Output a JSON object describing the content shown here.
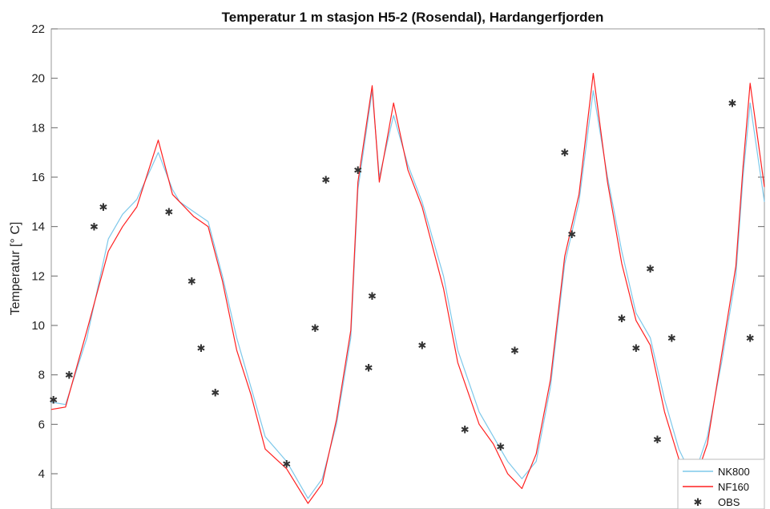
{
  "chart_data": {
    "type": "line",
    "title": "Temperatur 1 m stasjon H5-2 (Rosendal), Hardangerfjorden",
    "ylabel": "Temperatur [° C]",
    "xlabel": "",
    "xlim": [
      0,
      1
    ],
    "ylim": [
      2.4,
      22
    ],
    "y_ticks": [
      4,
      6,
      8,
      10,
      12,
      14,
      16,
      18,
      20,
      22
    ],
    "grid": false,
    "legend_position": "bottom-right",
    "colors": {
      "NK800": "#7ec8ea",
      "NF160": "#ff2020",
      "OBS": "#333333"
    },
    "series": [
      {
        "name": "NK800",
        "style": "line",
        "x": [
          0.0,
          0.02,
          0.05,
          0.08,
          0.1,
          0.12,
          0.15,
          0.17,
          0.18,
          0.2,
          0.22,
          0.24,
          0.26,
          0.28,
          0.3,
          0.33,
          0.36,
          0.38,
          0.4,
          0.42,
          0.43,
          0.45,
          0.46,
          0.48,
          0.5,
          0.52,
          0.55,
          0.57,
          0.6,
          0.62,
          0.64,
          0.66,
          0.68,
          0.7,
          0.72,
          0.74,
          0.76,
          0.78,
          0.8,
          0.82,
          0.84,
          0.86,
          0.88,
          0.9,
          0.92,
          0.94,
          0.96,
          0.97,
          0.98,
          1.0
        ],
        "y": [
          6.9,
          6.8,
          9.5,
          13.5,
          14.5,
          15.1,
          17.0,
          15.5,
          15.0,
          14.6,
          14.2,
          12.0,
          9.5,
          7.5,
          5.5,
          4.5,
          3.0,
          3.8,
          6.0,
          9.5,
          15.5,
          19.5,
          16.0,
          18.5,
          16.5,
          15.0,
          12.0,
          9.0,
          6.5,
          5.5,
          4.5,
          3.8,
          4.5,
          7.5,
          12.5,
          15.0,
          19.5,
          16.0,
          13.0,
          10.5,
          9.5,
          7.0,
          5.0,
          3.8,
          5.5,
          8.5,
          12.0,
          16.0,
          19.0,
          15.0
        ]
      },
      {
        "name": "NF160",
        "style": "line",
        "x": [
          0.0,
          0.02,
          0.05,
          0.08,
          0.1,
          0.12,
          0.15,
          0.17,
          0.18,
          0.2,
          0.22,
          0.24,
          0.26,
          0.28,
          0.3,
          0.33,
          0.36,
          0.38,
          0.4,
          0.42,
          0.43,
          0.45,
          0.46,
          0.48,
          0.5,
          0.52,
          0.55,
          0.57,
          0.6,
          0.62,
          0.64,
          0.66,
          0.68,
          0.7,
          0.72,
          0.74,
          0.76,
          0.78,
          0.8,
          0.82,
          0.84,
          0.86,
          0.88,
          0.9,
          0.92,
          0.94,
          0.96,
          0.97,
          0.98,
          1.0
        ],
        "y": [
          6.6,
          6.7,
          9.8,
          13.0,
          14.0,
          14.8,
          17.5,
          15.3,
          15.0,
          14.4,
          14.0,
          11.8,
          9.0,
          7.2,
          5.0,
          4.2,
          2.8,
          3.6,
          6.2,
          9.8,
          15.8,
          19.7,
          15.8,
          19.0,
          16.3,
          14.8,
          11.5,
          8.5,
          6.0,
          5.2,
          4.0,
          3.4,
          4.8,
          7.8,
          12.8,
          15.3,
          20.2,
          15.8,
          12.5,
          10.2,
          9.2,
          6.5,
          4.6,
          3.5,
          5.2,
          8.8,
          12.4,
          16.4,
          19.8,
          15.6
        ]
      },
      {
        "name": "OBS",
        "style": "marker",
        "x": [
          0.003,
          0.025,
          0.06,
          0.073,
          0.165,
          0.197,
          0.21,
          0.23,
          0.33,
          0.37,
          0.385,
          0.43,
          0.445,
          0.45,
          0.52,
          0.58,
          0.63,
          0.65,
          0.72,
          0.73,
          0.8,
          0.82,
          0.84,
          0.85,
          0.87,
          0.955,
          0.98
        ],
        "y": [
          7.0,
          8.0,
          14.0,
          14.8,
          14.6,
          11.8,
          9.1,
          7.3,
          4.4,
          9.9,
          15.9,
          16.3,
          8.3,
          11.2,
          9.2,
          5.8,
          5.1,
          9.0,
          17.0,
          13.7,
          10.3,
          9.1,
          12.3,
          5.4,
          9.5,
          19.0,
          9.5
        ]
      }
    ]
  }
}
